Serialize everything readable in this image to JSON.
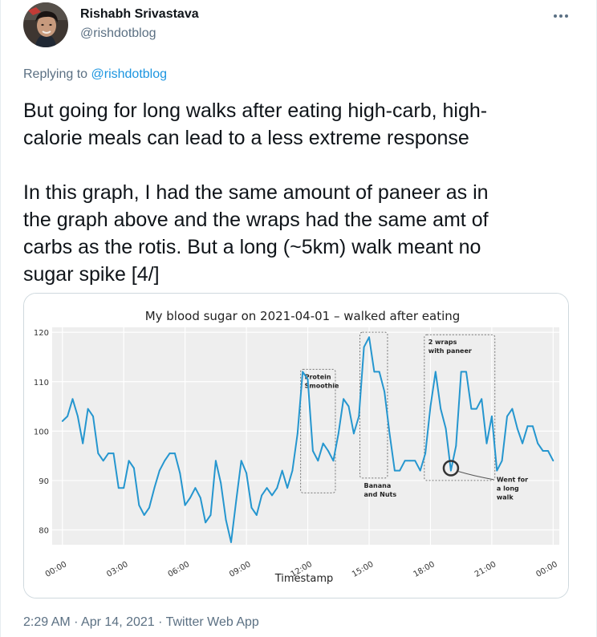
{
  "user": {
    "display_name": "Rishabh Srivastava",
    "handle": "@rishdotblog"
  },
  "more_icon": "more-horizontal-icon",
  "reply": {
    "prefix": "Replying to",
    "handle": "@rishdotblog"
  },
  "tweet_text": "But going for long walks after eating high-carb, high-\ncalorie meals can lead to a less extreme response\n\nIn this graph, I had the same amount of paneer as in\nthe graph above and the wraps had the same amt of\ncarbs as the rotis. But a long (~5km) walk meant no\nsugar spike [4/]",
  "meta": {
    "time": "2:29 AM",
    "separator": "·",
    "date": "Apr 14, 2021",
    "app": "Twitter Web App"
  },
  "colors": {
    "line": "#2596cf",
    "plot_bg": "#eeeeee",
    "grid": "#ffffff",
    "annotation_box": "#777777"
  },
  "chart_data": {
    "type": "line",
    "title": "My blood sugar on 2021-04-01 – walked after eating",
    "xlabel": "Timestamp",
    "ylabel": "",
    "x_unit": "hours since 00:00",
    "x_ticks": [
      "00:00",
      "03:00",
      "06:00",
      "09:00",
      "12:00",
      "15:00",
      "18:00",
      "21:00",
      "00:00"
    ],
    "x_tick_values": [
      0,
      3,
      6,
      9,
      12,
      15,
      18,
      21,
      24
    ],
    "y_ticks": [
      "80",
      "90",
      "100",
      "110",
      "120"
    ],
    "y_tick_values": [
      80,
      90,
      100,
      110,
      120
    ],
    "ylim": [
      77,
      121
    ],
    "xlim": [
      -0.5,
      24.3
    ],
    "grid": true,
    "series": [
      {
        "name": "",
        "x": [
          0,
          0.25,
          0.5,
          0.75,
          1,
          1.25,
          1.5,
          1.75,
          2,
          2.25,
          2.5,
          2.75,
          3,
          3.25,
          3.5,
          3.75,
          4,
          4.25,
          4.5,
          4.75,
          5,
          5.25,
          5.5,
          5.75,
          6,
          6.25,
          6.5,
          6.75,
          7,
          7.25,
          7.5,
          7.75,
          8,
          8.25,
          8.5,
          8.75,
          9,
          9.25,
          9.5,
          9.75,
          10,
          10.25,
          10.5,
          10.75,
          11,
          11.25,
          11.5,
          11.75,
          12,
          12.25,
          12.5,
          12.75,
          13,
          13.25,
          13.5,
          13.75,
          14,
          14.25,
          14.5,
          14.75,
          15,
          15.25,
          15.5,
          15.75,
          16,
          16.25,
          16.5,
          16.75,
          17,
          17.25,
          17.5,
          17.75,
          18,
          18.25,
          18.5,
          18.75,
          19,
          19.25,
          19.5,
          19.75,
          20,
          20.25,
          20.5,
          20.75,
          21,
          21.25,
          21.5,
          21.75,
          22,
          22.25,
          22.5,
          22.75,
          23,
          23.25,
          23.5,
          23.75,
          24
        ],
        "values": [
          102,
          103,
          106.5,
          103,
          97.5,
          104.5,
          103,
          95.5,
          94,
          95.5,
          95.5,
          88.5,
          88.5,
          94,
          92.5,
          85,
          83,
          84.5,
          88.5,
          92,
          94,
          95.5,
          95.5,
          91.5,
          85,
          86.5,
          88.5,
          86.5,
          81.5,
          83,
          94,
          89.5,
          82,
          77.5,
          86,
          94,
          91.5,
          84.5,
          83,
          87,
          88.5,
          87,
          88.5,
          92,
          88.5,
          92,
          99.5,
          112,
          110.5,
          96,
          94,
          97.5,
          96,
          94,
          99.5,
          106.5,
          105,
          99.5,
          103,
          117,
          119,
          112,
          112,
          108,
          99.5,
          92,
          92,
          94,
          94,
          94,
          92,
          95.5,
          105,
          112,
          104.5,
          100.5,
          92,
          97,
          112,
          112,
          104.5,
          104.5,
          106.5,
          97.5,
          103,
          92,
          94,
          103,
          104.5,
          100.5,
          97.5,
          101,
          101,
          97.5,
          96,
          96,
          94
        ]
      }
    ],
    "annotations": [
      {
        "label_lines": [
          "Protein",
          "Smoothie"
        ],
        "x_range": [
          11.65,
          13.35
        ],
        "y_range": [
          87.5,
          112.5
        ],
        "label_position": "above"
      },
      {
        "label_lines": [
          "Banana",
          "and Nuts"
        ],
        "x_range": [
          14.55,
          15.9
        ],
        "y_range": [
          90.5,
          120
        ],
        "label_position": "below"
      },
      {
        "label_lines": [
          "2 wraps",
          "with paneer"
        ],
        "x_range": [
          17.7,
          21.15
        ],
        "y_range": [
          90,
          119.5
        ],
        "label_position": "above"
      }
    ],
    "highlight": {
      "x": 19.0,
      "y": 92.5,
      "label_lines": [
        "Went for",
        "a long",
        "walk"
      ]
    }
  }
}
